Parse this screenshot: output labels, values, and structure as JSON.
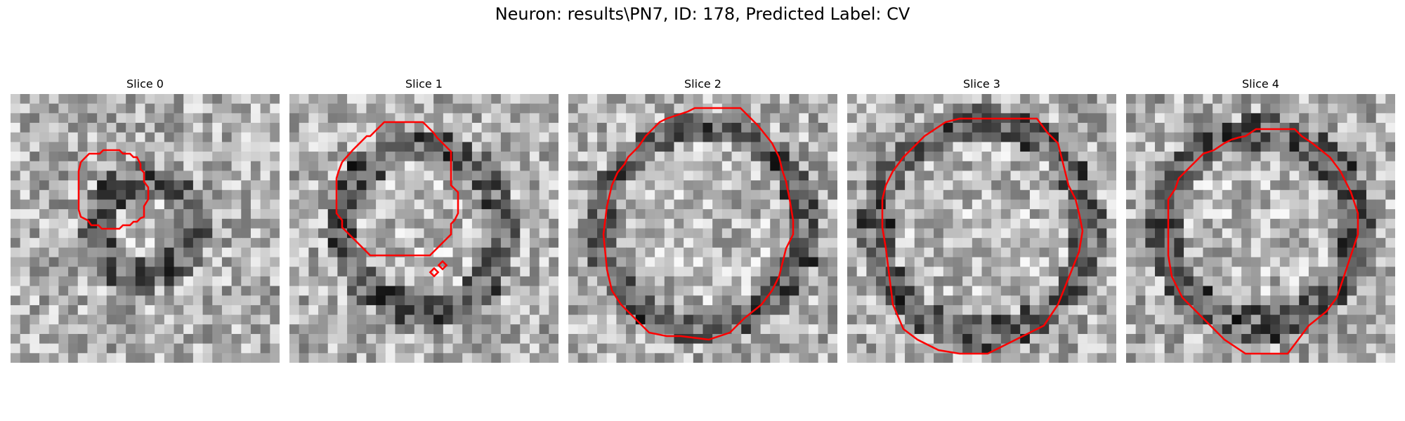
{
  "figure": {
    "title": "Neuron: results\\PN7, ID: 178, Predicted Label: CV"
  },
  "contour_color": "#ff0000",
  "slices": [
    {
      "title": "Slice 0"
    },
    {
      "title": "Slice 1"
    },
    {
      "title": "Slice 2"
    },
    {
      "title": "Slice 3"
    },
    {
      "title": "Slice 4"
    }
  ]
}
